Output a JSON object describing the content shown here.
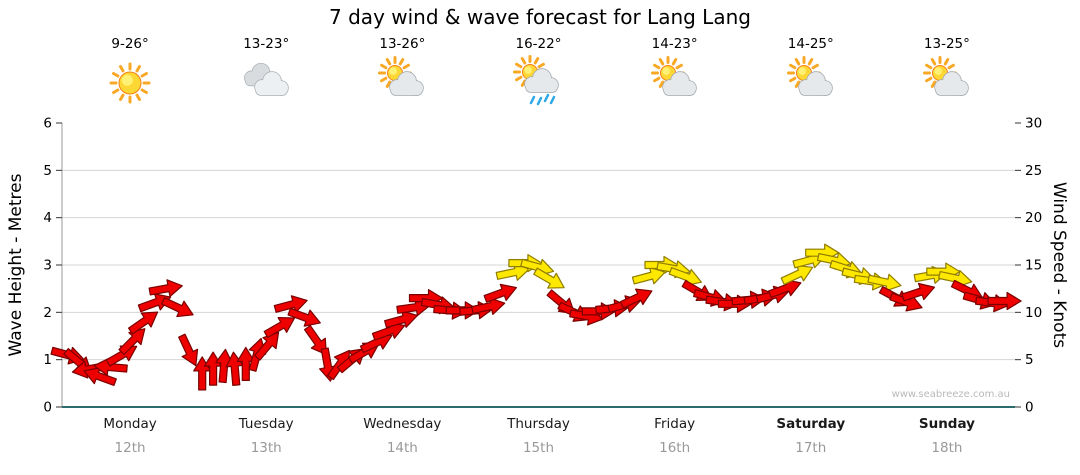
{
  "header": {
    "title": "7 day wind & wave forecast for Lang Lang"
  },
  "watermark": "www.seabreeze.com.au",
  "colors": {
    "arrow_red": "#ee0000",
    "arrow_red_outline": "#7a0000",
    "arrow_yellow": "#ffe800",
    "arrow_yellow_outline": "#8f7d00",
    "grid": "#d4d4d4",
    "baseline": "#2a6b6b",
    "yellow_threshold_knots": 13
  },
  "days": [
    {
      "label": "Monday",
      "date": "12th",
      "temps": "9-26°",
      "icon": "sunny",
      "bold": false
    },
    {
      "label": "Tuesday",
      "date": "13th",
      "temps": "13-23°",
      "icon": "cloudy",
      "bold": false
    },
    {
      "label": "Wednesday",
      "date": "14th",
      "temps": "13-26°",
      "icon": "partly-cloudy",
      "bold": false
    },
    {
      "label": "Thursday",
      "date": "15th",
      "temps": "16-22°",
      "icon": "rain",
      "bold": false
    },
    {
      "label": "Friday",
      "date": "16th",
      "temps": "14-23°",
      "icon": "partly-cloudy",
      "bold": false
    },
    {
      "label": "Saturday",
      "date": "17th",
      "temps": "14-25°",
      "icon": "partly-cloudy",
      "bold": true
    },
    {
      "label": "Sunday",
      "date": "18th",
      "temps": "13-25°",
      "icon": "partly-cloudy",
      "bold": true
    }
  ],
  "chart_data": {
    "type": "line",
    "style": "wind-direction-arrow-chain",
    "title": "7 day wind & wave forecast for Lang Lang",
    "y_left": {
      "label": "Wave Height - Metres",
      "min": 0,
      "max": 6,
      "ticks": [
        0,
        1,
        2,
        3,
        4,
        5,
        6
      ]
    },
    "y_right": {
      "label": "Wind Speed - Knots",
      "min": 0,
      "max": 30,
      "ticks": [
        0,
        5,
        10,
        15,
        20,
        25,
        30
      ]
    },
    "x": {
      "categories": [
        "Monday",
        "Tuesday",
        "Wednesday",
        "Thursday",
        "Friday",
        "Saturday",
        "Sunday"
      ],
      "dates": [
        "12th",
        "13th",
        "14th",
        "15th",
        "16th",
        "17th",
        "18th"
      ]
    },
    "grid": "horizontal",
    "point_format": [
      "day_index",
      "fraction_of_day",
      "wind_speed_knots",
      "arrow_rotation_deg"
    ],
    "color_rule": "red below 13 knots, yellow at 13 knots and above",
    "series": [
      {
        "name": "Wind speed & direction",
        "points": [
          [
            0,
            0.04,
            5.5,
            15
          ],
          [
            0,
            0.12,
            4.8,
            40
          ],
          [
            0,
            0.2,
            4.0,
            170
          ],
          [
            0,
            0.28,
            3.2,
            200
          ],
          [
            0,
            0.36,
            4.2,
            185
          ],
          [
            0,
            0.44,
            5.5,
            330
          ],
          [
            0,
            0.52,
            7.0,
            315
          ],
          [
            0,
            0.6,
            9.0,
            325
          ],
          [
            0,
            0.68,
            11.0,
            340
          ],
          [
            0,
            0.76,
            12.5,
            350
          ],
          [
            0,
            0.85,
            10.5,
            25
          ],
          [
            0,
            0.93,
            6.0,
            65
          ],
          [
            1,
            0.03,
            3.5,
            270
          ],
          [
            1,
            0.11,
            4.0,
            270
          ],
          [
            1,
            0.19,
            4.3,
            275
          ],
          [
            1,
            0.27,
            4.0,
            265
          ],
          [
            1,
            0.35,
            4.5,
            270
          ],
          [
            1,
            0.43,
            5.5,
            285
          ],
          [
            1,
            0.51,
            6.5,
            310
          ],
          [
            1,
            0.6,
            8.5,
            330
          ],
          [
            1,
            0.68,
            10.8,
            345
          ],
          [
            1,
            0.78,
            9.5,
            20
          ],
          [
            1,
            0.87,
            7.0,
            55
          ],
          [
            1,
            0.95,
            4.5,
            80
          ],
          [
            2,
            0.04,
            4.5,
            305
          ],
          [
            2,
            0.13,
            5.0,
            320
          ],
          [
            2,
            0.22,
            5.8,
            330
          ],
          [
            2,
            0.31,
            6.8,
            335
          ],
          [
            2,
            0.4,
            8.0,
            340
          ],
          [
            2,
            0.49,
            9.2,
            345
          ],
          [
            2,
            0.58,
            10.5,
            352
          ],
          [
            2,
            0.67,
            11.5,
            0
          ],
          [
            2,
            0.76,
            10.8,
            10
          ],
          [
            2,
            0.85,
            10.2,
            5
          ],
          [
            2,
            0.94,
            10.2,
            0
          ],
          [
            3,
            0.04,
            10.2,
            355
          ],
          [
            3,
            0.13,
            10.6,
            348
          ],
          [
            3,
            0.22,
            12.0,
            340
          ],
          [
            3,
            0.31,
            14.2,
            348
          ],
          [
            3,
            0.4,
            15.2,
            0
          ],
          [
            3,
            0.49,
            14.8,
            15
          ],
          [
            3,
            0.58,
            13.5,
            30
          ],
          [
            3,
            0.67,
            11.0,
            40
          ],
          [
            3,
            0.76,
            10.0,
            25
          ],
          [
            3,
            0.85,
            9.6,
            10
          ],
          [
            3,
            0.94,
            10.1,
            0
          ],
          [
            4,
            0.04,
            10.4,
            355
          ],
          [
            4,
            0.13,
            10.8,
            345
          ],
          [
            4,
            0.22,
            11.5,
            335
          ],
          [
            4,
            0.31,
            13.8,
            345
          ],
          [
            4,
            0.4,
            15.0,
            0
          ],
          [
            4,
            0.49,
            14.6,
            10
          ],
          [
            4,
            0.58,
            13.8,
            20
          ],
          [
            4,
            0.67,
            12.2,
            30
          ],
          [
            4,
            0.76,
            11.6,
            15
          ],
          [
            4,
            0.85,
            11.1,
            8
          ],
          [
            4,
            0.94,
            10.9,
            0
          ],
          [
            5,
            0.04,
            11.3,
            355
          ],
          [
            5,
            0.13,
            11.5,
            350
          ],
          [
            5,
            0.22,
            11.8,
            345
          ],
          [
            5,
            0.31,
            12.5,
            340
          ],
          [
            5,
            0.4,
            14.0,
            335
          ],
          [
            5,
            0.49,
            15.5,
            345
          ],
          [
            5,
            0.58,
            16.3,
            0
          ],
          [
            5,
            0.67,
            15.5,
            12
          ],
          [
            5,
            0.76,
            14.6,
            18
          ],
          [
            5,
            0.85,
            13.9,
            14
          ],
          [
            5,
            0.94,
            13.3,
            8
          ],
          [
            6,
            0.04,
            13.2,
            12
          ],
          [
            6,
            0.12,
            11.6,
            28
          ],
          [
            6,
            0.2,
            11.1,
            20
          ],
          [
            6,
            0.29,
            12.1,
            342
          ],
          [
            6,
            0.38,
            13.9,
            350
          ],
          [
            6,
            0.47,
            14.3,
            0
          ],
          [
            6,
            0.56,
            13.6,
            12
          ],
          [
            6,
            0.65,
            12.3,
            26
          ],
          [
            6,
            0.74,
            11.3,
            16
          ],
          [
            6,
            0.83,
            11.0,
            8
          ],
          [
            6,
            0.92,
            11.2,
            0
          ]
        ]
      }
    ]
  }
}
